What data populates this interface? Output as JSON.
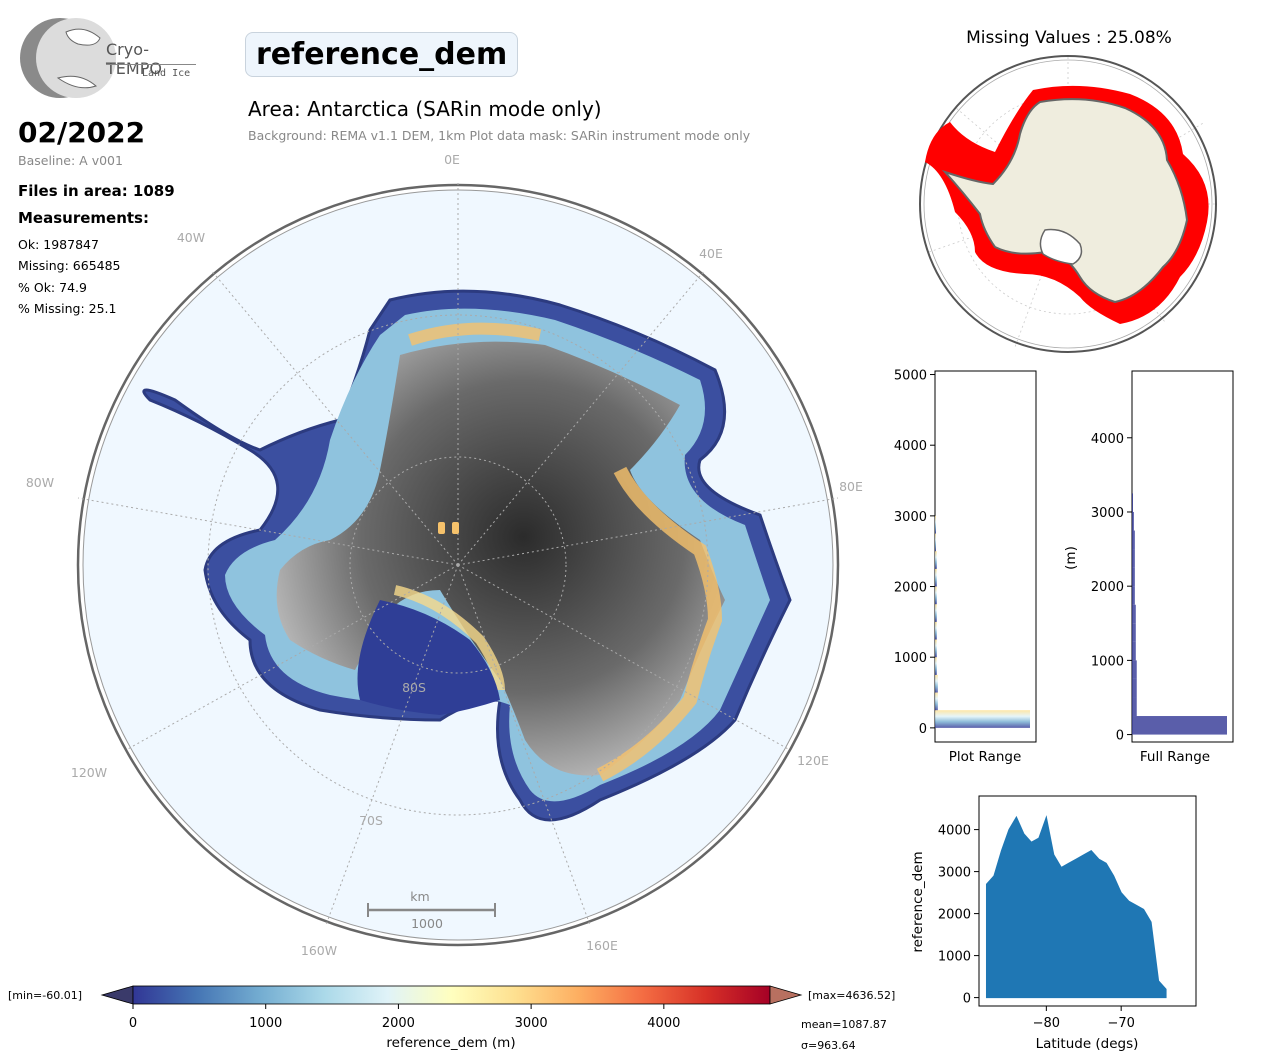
{
  "header": {
    "logo_name": "Cryo-TEMPO",
    "logo_sub": "Land Ice",
    "variable": "reference_dem",
    "area": "Area: Antarctica (SARin mode only)",
    "background": "Background: REMA v1.1 DEM, 1km   Plot data mask: SARin instrument mode only"
  },
  "summary": {
    "date": "02/2022",
    "baseline": "Baseline: A v001",
    "files": "Files in area: 1089",
    "measurements_label": "Measurements:",
    "ok": "Ok: 1987847",
    "missing": "Missing: 665485",
    "pct_ok": "% Ok: 74.9",
    "pct_missing": "% Missing: 25.1"
  },
  "map": {
    "lon_labels": [
      "0E",
      "40E",
      "80E",
      "120E",
      "160E",
      "160W",
      "120W",
      "80W",
      "40W"
    ],
    "lat_labels": [
      "80S",
      "70S"
    ],
    "scalebar_unit": "km",
    "scalebar_value": "1000"
  },
  "colorbar": {
    "min_label": "[min=-60.01]",
    "max_label": "[max=4636.52]",
    "ticks": [
      "0",
      "1000",
      "2000",
      "3000",
      "4000"
    ],
    "label": "reference_dem (m)",
    "mean": "mean=1087.87",
    "sigma": "σ=963.64",
    "colors": [
      "#313695",
      "#4575b4",
      "#74add1",
      "#abd9e9",
      "#e0f3f8",
      "#ffffbf",
      "#fee090",
      "#fdae61",
      "#f46d43",
      "#d73027",
      "#a50026"
    ]
  },
  "missing_map": {
    "title": "Missing Values : 25.08%",
    "colors": {
      "missing": "#ff0000",
      "land": "#efedde",
      "ocean": "#ffffff"
    }
  },
  "chart_data": [
    {
      "type": "bar",
      "orientation": "horizontal",
      "name": "plot-range-histogram",
      "xlabel": "Plot Range",
      "ylabel": "",
      "ylim": [
        -200,
        5050
      ],
      "yticks": [
        "0",
        "1000",
        "2000",
        "3000",
        "4000",
        "5000"
      ],
      "bin_edges": [
        0,
        250,
        500,
        750,
        1000,
        1250,
        1500,
        1750,
        2000,
        2250,
        2500,
        2750,
        3000
      ],
      "counts": [
        100,
        3,
        3,
        2,
        2,
        2,
        2,
        2,
        2,
        2,
        1,
        1
      ]
    },
    {
      "type": "bar",
      "orientation": "horizontal",
      "name": "full-range-histogram",
      "xlabel": "Full Range",
      "ylabel": "(m)",
      "ylim": [
        -100,
        4900
      ],
      "yticks": [
        "0",
        "1000",
        "2000",
        "3000",
        "4000"
      ],
      "bin_edges": [
        0,
        250,
        500,
        750,
        1000,
        1250,
        1500,
        1750,
        2000,
        2250,
        2500,
        2750,
        3000,
        3250
      ],
      "counts": [
        100,
        5,
        5,
        5,
        4,
        4,
        4,
        3,
        3,
        3,
        3,
        2,
        1
      ]
    },
    {
      "type": "scatter",
      "name": "latitude-scatter",
      "xlabel": "Latitude (degs)",
      "ylabel": "reference_dem",
      "xlim": [
        -89,
        -60
      ],
      "ylim": [
        -200,
        4800
      ],
      "xticks": [
        "−80",
        "−70"
      ],
      "yticks": [
        "0",
        "1000",
        "2000",
        "3000",
        "4000"
      ],
      "color": "#1f77b4",
      "upper_envelope": [
        [
          -88,
          2700
        ],
        [
          -87,
          2900
        ],
        [
          -86,
          3500
        ],
        [
          -85,
          4000
        ],
        [
          -84,
          4300
        ],
        [
          -83,
          3900
        ],
        [
          -82,
          3700
        ],
        [
          -81,
          3800
        ],
        [
          -80,
          4300
        ],
        [
          -79,
          3400
        ],
        [
          -78,
          3100
        ],
        [
          -77,
          3200
        ],
        [
          -76,
          3300
        ],
        [
          -75,
          3400
        ],
        [
          -74,
          3500
        ],
        [
          -73,
          3300
        ],
        [
          -72,
          3200
        ],
        [
          -71,
          2900
        ],
        [
          -70,
          2500
        ],
        [
          -69,
          2300
        ],
        [
          -68,
          2200
        ],
        [
          -67,
          2100
        ],
        [
          -66,
          1800
        ],
        [
          -65,
          400
        ],
        [
          -64,
          200
        ]
      ],
      "lower_bound": 0
    }
  ]
}
